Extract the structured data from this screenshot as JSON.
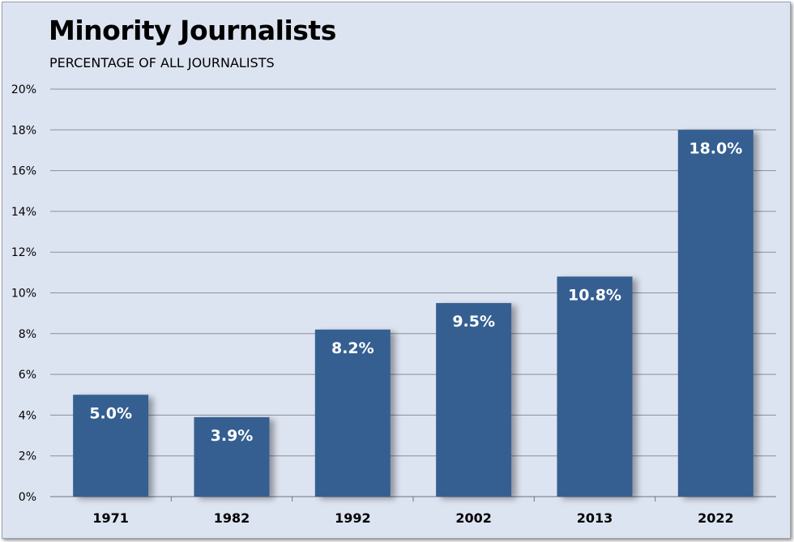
{
  "chart_data": {
    "type": "bar",
    "title": "Minority Journalists",
    "subtitle": "PERCENTAGE OF ALL JOURNALISTS",
    "categories": [
      "1971",
      "1982",
      "1992",
      "2002",
      "2013",
      "2022"
    ],
    "values": [
      5.0,
      3.9,
      8.2,
      9.5,
      10.8,
      18.0
    ],
    "data_labels": [
      "5.0%",
      "3.9%",
      "8.2%",
      "9.5%",
      "10.8%",
      "18.0%"
    ],
    "yticks": [
      0,
      2,
      4,
      6,
      8,
      10,
      12,
      14,
      16,
      18,
      20
    ],
    "ytick_labels": [
      "0%",
      "2%",
      "4%",
      "6%",
      "8%",
      "10%",
      "12%",
      "14%",
      "16%",
      "18%",
      "20%"
    ],
    "ylim": [
      0,
      20
    ],
    "xlabel": "",
    "ylabel": "",
    "grid": true,
    "legend": "none",
    "colors": {
      "bar": "#365f91",
      "background": "#dde4f1",
      "grid": "#8a8f99"
    }
  }
}
